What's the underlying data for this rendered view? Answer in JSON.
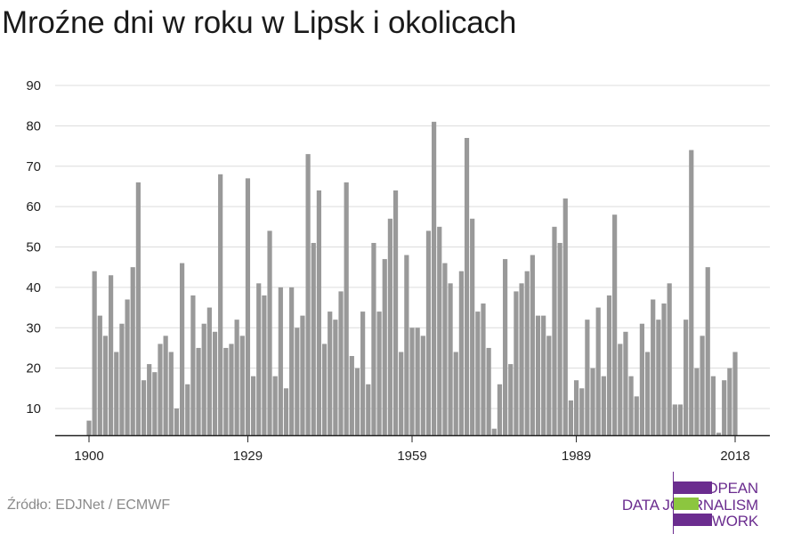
{
  "title": "Mroźne dni w roku w Lipsk i okolicach",
  "source": "Źródło: EDJNet / ECMWF",
  "logo": {
    "lines": [
      "EUROPEAN",
      "DATA JOURNALISM",
      "NETWORK"
    ],
    "colors": {
      "purple": "#6b2d8f",
      "green": "#8cc63f"
    }
  },
  "chart_data": {
    "type": "bar",
    "title": "Mroźne dni w roku w Lipsk i okolicach",
    "xlabel": "",
    "ylabel": "",
    "x_tick_labels": [
      "1900",
      "1929",
      "1959",
      "1989",
      "2018"
    ],
    "y_ticks": [
      10,
      20,
      30,
      40,
      50,
      60,
      70,
      80,
      90
    ],
    "ylim": [
      3,
      92
    ],
    "grid": true,
    "bar_color": "#999999",
    "categories": [
      1900,
      1901,
      1902,
      1903,
      1904,
      1905,
      1906,
      1907,
      1908,
      1909,
      1910,
      1911,
      1912,
      1913,
      1914,
      1915,
      1916,
      1917,
      1918,
      1919,
      1920,
      1921,
      1922,
      1923,
      1924,
      1925,
      1926,
      1927,
      1928,
      1929,
      1930,
      1931,
      1932,
      1933,
      1934,
      1935,
      1936,
      1937,
      1938,
      1939,
      1940,
      1941,
      1942,
      1943,
      1944,
      1945,
      1946,
      1947,
      1948,
      1949,
      1950,
      1951,
      1952,
      1953,
      1954,
      1955,
      1956,
      1957,
      1958,
      1959,
      1960,
      1961,
      1962,
      1963,
      1964,
      1965,
      1966,
      1967,
      1968,
      1969,
      1970,
      1971,
      1972,
      1973,
      1974,
      1975,
      1976,
      1977,
      1978,
      1979,
      1980,
      1981,
      1982,
      1983,
      1984,
      1985,
      1986,
      1987,
      1988,
      1989,
      1990,
      1991,
      1992,
      1993,
      1994,
      1995,
      1996,
      1997,
      1998,
      1999,
      2000,
      2001,
      2002,
      2003,
      2004,
      2005,
      2006,
      2007,
      2008,
      2009,
      2010,
      2011,
      2012,
      2013,
      2014,
      2015,
      2016,
      2017,
      2018
    ],
    "values": [
      7,
      44,
      33,
      28,
      43,
      24,
      31,
      37,
      45,
      66,
      17,
      21,
      19,
      26,
      28,
      24,
      10,
      46,
      16,
      38,
      25,
      31,
      35,
      29,
      68,
      25,
      26,
      32,
      28,
      67,
      18,
      41,
      38,
      54,
      18,
      40,
      15,
      40,
      30,
      33,
      73,
      51,
      64,
      26,
      34,
      32,
      39,
      66,
      23,
      20,
      34,
      16,
      51,
      34,
      47,
      57,
      64,
      24,
      48,
      30,
      30,
      28,
      54,
      81,
      55,
      46,
      41,
      24,
      44,
      77,
      57,
      34,
      36,
      25,
      5,
      16,
      47,
      21,
      39,
      41,
      44,
      48,
      33,
      33,
      28,
      55,
      51,
      62,
      12,
      17,
      15,
      32,
      20,
      35,
      18,
      38,
      58,
      26,
      29,
      18,
      13,
      31,
      24,
      37,
      32,
      36,
      41,
      11,
      11,
      32,
      74,
      20,
      28,
      45,
      18,
      4,
      17,
      20,
      24
    ]
  }
}
